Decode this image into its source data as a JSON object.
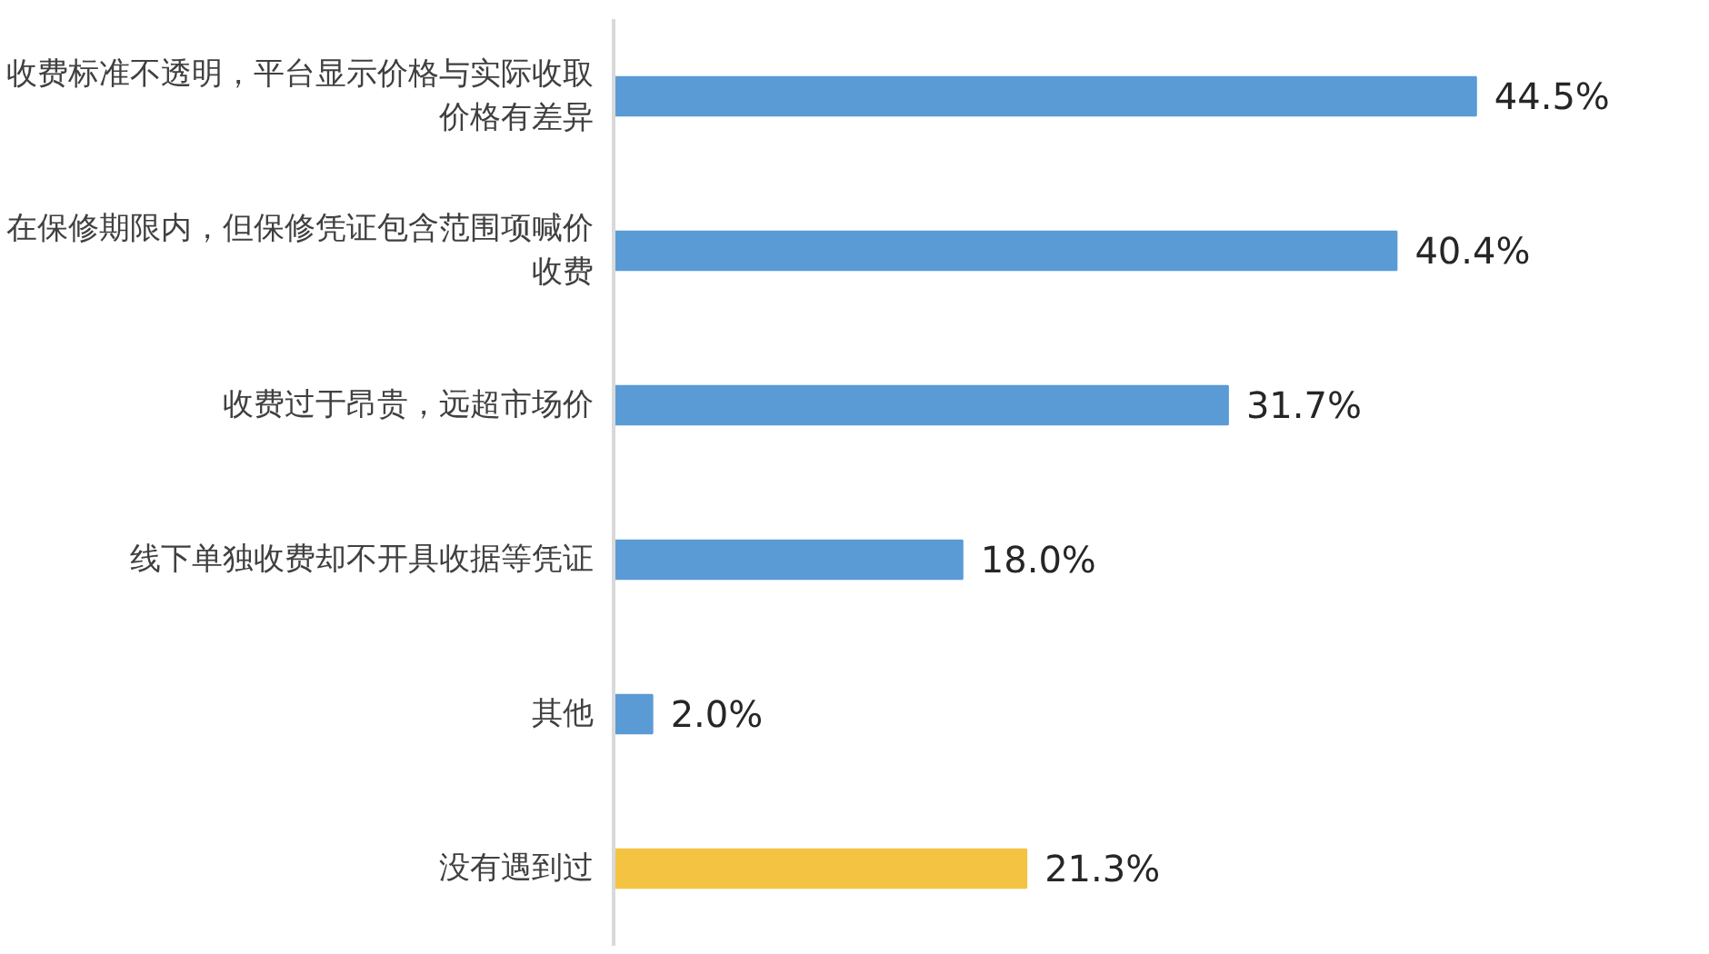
{
  "chart_data": {
    "type": "bar",
    "orientation": "horizontal",
    "categories": [
      "收费标准不透明，平台显示价格与实际收取价格有差异",
      "在保修期限内，但保修凭证包含范围项喊价收费",
      "收费过于昂贵，远超市场价",
      "线下单独收费却不开具收据等凭证",
      "其他",
      "没有遇到过"
    ],
    "values": [
      44.5,
      40.4,
      31.7,
      18.0,
      2.0,
      21.3
    ],
    "colors": [
      "#5b9bd5",
      "#5b9bd5",
      "#5b9bd5",
      "#5b9bd5",
      "#5b9bd5",
      "#f5c342"
    ],
    "value_labels": [
      "44.5%",
      "40.4%",
      "31.7%",
      "18.0%",
      "2.0%",
      "21.3%"
    ],
    "grid": false
  }
}
